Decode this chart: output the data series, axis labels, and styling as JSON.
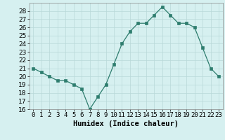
{
  "x": [
    0,
    1,
    2,
    3,
    4,
    5,
    6,
    7,
    8,
    9,
    10,
    11,
    12,
    13,
    14,
    15,
    16,
    17,
    18,
    19,
    20,
    21,
    22,
    23
  ],
  "y": [
    21.0,
    20.5,
    20.0,
    19.5,
    19.5,
    19.0,
    18.5,
    16.0,
    17.5,
    19.0,
    21.5,
    24.0,
    25.5,
    26.5,
    26.5,
    27.5,
    28.5,
    27.5,
    26.5,
    26.5,
    26.0,
    23.5,
    21.0,
    20.0
  ],
  "xlabel": "Humidex (Indice chaleur)",
  "ylim": [
    16,
    29
  ],
  "xlim": [
    -0.5,
    23.5
  ],
  "yticks": [
    16,
    17,
    18,
    19,
    20,
    21,
    22,
    23,
    24,
    25,
    26,
    27,
    28
  ],
  "xtick_labels": [
    "0",
    "1",
    "2",
    "3",
    "4",
    "5",
    "6",
    "7",
    "8",
    "9",
    "10",
    "11",
    "12",
    "13",
    "14",
    "15",
    "16",
    "17",
    "18",
    "19",
    "20",
    "21",
    "22",
    "23"
  ],
  "line_color": "#2e7d6e",
  "marker_color": "#2e7d6e",
  "bg_color": "#d6f0f0",
  "grid_color": "#b8d8d8",
  "font_color": "#000000",
  "tick_fontsize": 6.5,
  "xlabel_fontsize": 7.5
}
